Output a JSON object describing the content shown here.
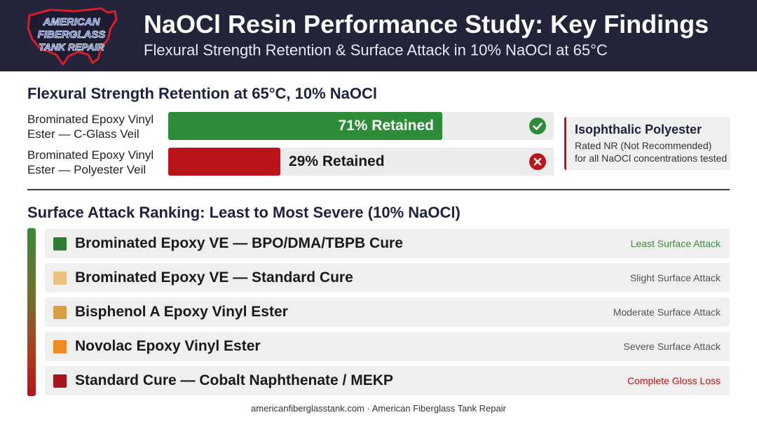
{
  "header": {
    "logo": {
      "line1": "AMERICAN",
      "line2": "FIBERGLASS",
      "line3": "TANK REPAIR"
    },
    "title": "NaOCl Resin Performance Study: Key Findings",
    "subtitle": "Flexural Strength Retention & Surface Attack in 10% NaOCl at 65°C"
  },
  "chart_data": [
    {
      "type": "bar",
      "orientation": "horizontal",
      "title": "Flexural Strength Retention at 65°C, 10% NaOCl",
      "xlim": [
        0,
        100
      ],
      "unit": "% Retained",
      "categories": [
        "Brominated Epoxy Vinyl Ester — C-Glass Veil",
        "Brominated Epoxy Vinyl Ester — Polyester Veil"
      ],
      "values": [
        71,
        29
      ],
      "data_labels": [
        "71% Retained",
        "29% Retained"
      ],
      "colors": [
        "#2e8b38",
        "#b8141a"
      ],
      "status_icons": [
        "check-icon",
        "x-icon"
      ]
    },
    {
      "type": "table",
      "title": "Surface Attack Ranking: Least to Most Severe (10% NaOCl)",
      "rows": [
        {
          "name": "Brominated Epoxy VE — BPO/DMA/TBPB Cure",
          "rating": "Least Surface Attack",
          "color": "#2e7d32",
          "tag_color": "#3c8a3c"
        },
        {
          "name": "Brominated Epoxy VE — Standard Cure",
          "rating": "Slight Surface Attack",
          "color": "#e8c27e",
          "tag_color": "#555555"
        },
        {
          "name": "Bisphenol A Epoxy Vinyl Ester",
          "rating": "Moderate Surface Attack",
          "color": "#d9a041",
          "tag_color": "#555555"
        },
        {
          "name": "Novolac Epoxy Vinyl Ester",
          "rating": "Severe Surface Attack",
          "color": "#f08a24",
          "tag_color": "#555555"
        },
        {
          "name": "Standard Cure — Cobalt Naphthenate / MEKP",
          "rating": "Complete Gloss Loss",
          "color": "#a8141a",
          "tag_color": "#b8141a"
        }
      ]
    }
  ],
  "note": {
    "title": "Isophthalic Polyester",
    "line1": "Rated NR (Not Recommended)",
    "line2": "for all NaOCl concentrations tested"
  },
  "colors": {
    "header_bg": "#23243a",
    "retained_good": "#2e8b38",
    "retained_bad": "#b8141a"
  },
  "footer": {
    "text": "americanfiberglasstank.com · American Fiberglass Tank Repair"
  }
}
